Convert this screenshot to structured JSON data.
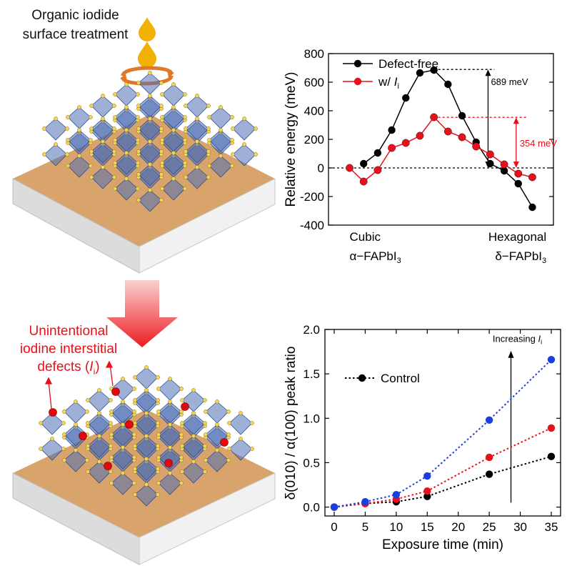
{
  "schematic": {
    "title_line1": "Organic iodide",
    "title_line2": "surface treatment",
    "defect_line1": "Unintentional",
    "defect_line2": "iodine interstitial",
    "defect_line3_prefix": "defects (",
    "defect_symbol": "I",
    "defect_sub": "i",
    "defect_line3_suffix": ")",
    "colors": {
      "droplet": "#f2b203",
      "arrow_orange": "#e0782a",
      "substrate": "#d9a46c",
      "octahedron": "#4f6fb5",
      "atom": "#f5d451",
      "defect_atom": "#e3080f",
      "down_arrow": "#ec1d23"
    }
  },
  "chart_data": [
    {
      "type": "line",
      "ylabel": "Relative energy (meV)",
      "ylim": [
        -400,
        800
      ],
      "yticks": [
        -400,
        -200,
        0,
        200,
        400,
        600,
        800
      ],
      "xlim": [
        -1.5,
        14.5
      ],
      "x_tick_labels": [
        {
          "x": 0,
          "line1": "Cubic",
          "line2": "α−FAPbI",
          "sub2": "3",
          "anchor": "start"
        },
        {
          "x": 14,
          "line1": "Hexagonal",
          "line2": "δ−FAPbI",
          "sub2": "3",
          "anchor": "end"
        }
      ],
      "legend_position": "top-left",
      "series": [
        {
          "name": "Defect-free",
          "color": "#000000",
          "x": [
            1,
            2,
            3,
            4,
            5,
            6,
            7,
            8,
            9,
            10,
            11,
            12,
            13
          ],
          "y": [
            30,
            105,
            265,
            490,
            665,
            685,
            585,
            365,
            180,
            30,
            -20,
            -110,
            -275
          ]
        },
        {
          "name_prefix": "w/ ",
          "name_symbol": "I",
          "name_sub": "i",
          "color": "#e8101a",
          "x": [
            0,
            1,
            2,
            3,
            4,
            5,
            6,
            7,
            8,
            9,
            10,
            11,
            12,
            13
          ],
          "y": [
            0,
            -95,
            -15,
            140,
            175,
            225,
            355,
            255,
            215,
            150,
            95,
            25,
            -40,
            -65
          ]
        }
      ],
      "reference_lines": [
        {
          "y": 0,
          "color": "#000000"
        },
        {
          "y": 689,
          "color": "#000000"
        },
        {
          "y": 354,
          "color": "#e8101a"
        }
      ],
      "annotations": [
        {
          "text": "689 meV",
          "color": "#000000"
        },
        {
          "text": "354 meV",
          "color": "#e8101a"
        }
      ]
    },
    {
      "type": "line",
      "xlabel": "Exposure time (min)",
      "ylabel": "δ(010) / α(100) peak ratio",
      "xlim": [
        -1.5,
        36.5
      ],
      "ylim": [
        -0.1,
        2.0
      ],
      "xticks": [
        0,
        5,
        10,
        15,
        20,
        25,
        30,
        35
      ],
      "yticks": [
        0.0,
        0.5,
        1.0,
        1.5,
        2.0
      ],
      "ytick_labels": [
        "0.0",
        "0.5",
        "1.0",
        "1.5",
        "2.0"
      ],
      "x": [
        0,
        5,
        10,
        15,
        25,
        35
      ],
      "series": [
        {
          "name": "Control",
          "color": "#000000",
          "values": [
            0.0,
            0.04,
            0.06,
            0.12,
            0.37,
            0.57
          ]
        },
        {
          "color": "#e8101a",
          "values": [
            0.0,
            0.04,
            0.09,
            0.18,
            0.56,
            0.89
          ]
        },
        {
          "color": "#1a3fe0",
          "values": [
            0.0,
            0.06,
            0.14,
            0.35,
            0.98,
            1.66
          ]
        }
      ],
      "annotation": {
        "prefix": "Increasing ",
        "symbol": "I",
        "sub": "i"
      }
    }
  ]
}
